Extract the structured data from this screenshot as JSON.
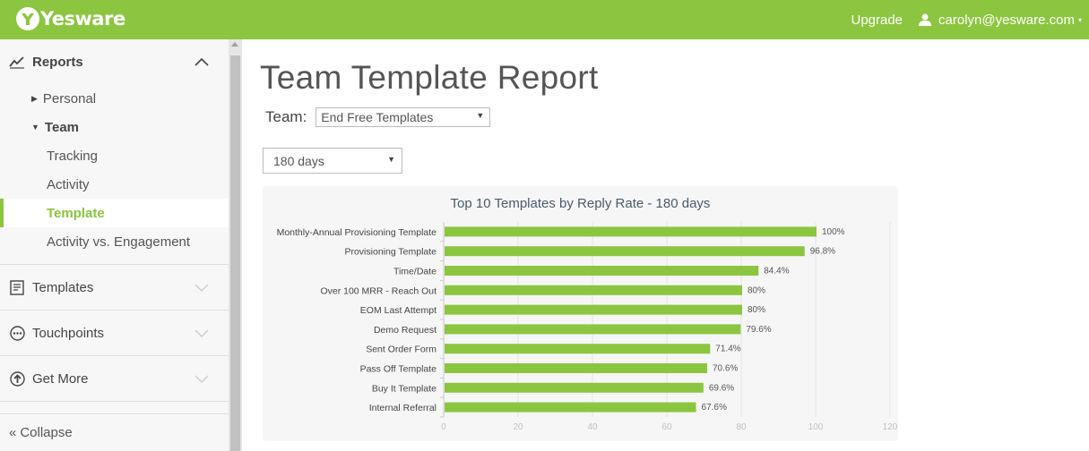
{
  "header": {
    "brand": "Yesware",
    "upgrade_label": "Upgrade",
    "user_email": "carolyn@yesware.com",
    "accent_color": "#8cc540"
  },
  "sidebar": {
    "reports": {
      "label": "Reports",
      "icon": "trend-line-icon",
      "items": [
        {
          "label": "Personal",
          "state": "collapsed"
        },
        {
          "label": "Team",
          "state": "expanded",
          "children": [
            "Tracking",
            "Activity",
            "Template",
            "Activity vs. Engagement"
          ],
          "active": "Template"
        }
      ]
    },
    "sections": [
      {
        "label": "Templates",
        "icon": "template-doc-icon"
      },
      {
        "label": "Touchpoints",
        "icon": "touchpoints-dots-icon"
      },
      {
        "label": "Get More",
        "icon": "arrow-up-circle-icon"
      }
    ],
    "collapse_label": "Collapse"
  },
  "main": {
    "title": "Team Template Report",
    "team_label": "Team:",
    "team_selected": "End Free Templates",
    "days_selected": "180 days"
  },
  "chart_data": {
    "type": "bar",
    "orientation": "horizontal",
    "title": "Top 10 Templates by Reply Rate - 180 days",
    "categories": [
      "Monthly-Annual Provisioning Template",
      "Provisioning Template",
      "Time/Date",
      "Over 100 MRR - Reach Out",
      "EOM Last Attempt",
      "Demo Request",
      "Sent Order Form",
      "Pass Off Template",
      "Buy It Template",
      "Internal Referral"
    ],
    "values": [
      100,
      96.8,
      84.4,
      80,
      80,
      79.6,
      71.4,
      70.6,
      69.6,
      67.6
    ],
    "data_labels": [
      "100%",
      "96.8%",
      "84.4%",
      "80%",
      "80%",
      "79.6%",
      "71.4%",
      "70.6%",
      "69.6%",
      "67.6%"
    ],
    "xlim": [
      0,
      120
    ],
    "xticks": [
      0,
      20,
      40,
      60,
      80,
      100,
      120
    ],
    "grid": true,
    "bar_color": "#8cc540"
  }
}
